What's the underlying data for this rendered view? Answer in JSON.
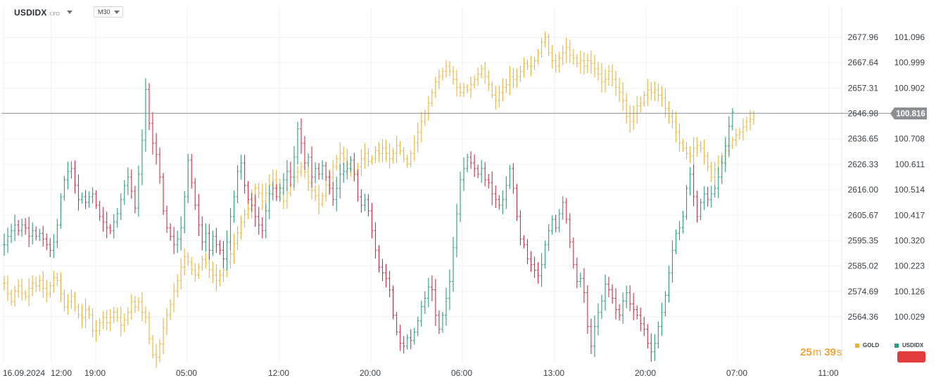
{
  "toolbar": {
    "symbol": "USDIDX",
    "symbol_type": "CFD",
    "timeframe": "M30"
  },
  "countdown": {
    "minutes": "25",
    "minutes_unit": "m",
    "seconds": "39",
    "seconds_unit": "s"
  },
  "price_badge": "100.816",
  "colors": {
    "gold": "#e8b63c",
    "up": "#2f9c7e",
    "down": "#c8334a",
    "badge": "#e23d3a",
    "current_line": "#8b8f94",
    "grid": "#f1f2f4"
  },
  "chart_data": {
    "type": "line",
    "bar_style": "ohlc",
    "timeframe": "M30",
    "x_tick_labels": [
      "16.09.2024",
      "12:00",
      "19:00",
      "05:00",
      "12:00",
      "20:00",
      "06:00",
      "13:00",
      "20:00",
      "07:00",
      "11:00"
    ],
    "left_axis_labels": [
      "2677.96",
      "2667.64",
      "2657.31",
      "2646.98",
      "2636.65",
      "2626.33",
      "2616.00",
      "2605.67",
      "2595.35",
      "2585.02",
      "2574.69",
      "2564.36"
    ],
    "right_axis_labels": [
      "101.096",
      "100.999",
      "100.902",
      "100.816",
      "100.708",
      "100.611",
      "100.514",
      "100.417",
      "100.320",
      "100.223",
      "100.126",
      "100.029"
    ],
    "left_ylim": [
      2554.0,
      2688.3
    ],
    "right_ylim": [
      99.932,
      101.193
    ],
    "grid": true,
    "legend_position": "bottom-right",
    "series": [
      {
        "name": "GOLD",
        "axis": "left",
        "color": "#e8b63c",
        "values": [
          2584,
          2580,
          2577,
          2581,
          2583,
          2580,
          2579,
          2582,
          2584,
          2583,
          2585,
          2582,
          2580,
          2583,
          2586,
          2585,
          2580,
          2575,
          2577,
          2579,
          2575,
          2572,
          2571,
          2574,
          2572,
          2566,
          2566,
          2569,
          2571,
          2569,
          2571,
          2573,
          2571,
          2568,
          2570,
          2573,
          2577,
          2575,
          2577,
          2573,
          2571,
          2563,
          2557,
          2556,
          2561,
          2567,
          2572,
          2576,
          2581,
          2585,
          2590,
          2594,
          2592,
          2589,
          2587,
          2590,
          2593,
          2592,
          2589,
          2587,
          2585,
          2587,
          2589,
          2592,
          2595,
          2599,
          2603,
          2607,
          2610,
          2612,
          2616,
          2620,
          2618,
          2615,
          2618,
          2621,
          2623,
          2620,
          2618,
          2615,
          2618,
          2621,
          2624,
          2626,
          2628,
          2626,
          2622,
          2619,
          2617,
          2614,
          2617,
          2621,
          2624,
          2628,
          2631,
          2633,
          2631,
          2629,
          2627,
          2626,
          2628,
          2631,
          2633,
          2630,
          2631,
          2634,
          2633,
          2635,
          2633,
          2631,
          2633,
          2636,
          2634,
          2631,
          2629,
          2633,
          2637,
          2641,
          2645,
          2648,
          2652,
          2656,
          2660,
          2662,
          2664,
          2666,
          2664,
          2661,
          2658,
          2656,
          2658,
          2657,
          2659,
          2661,
          2663,
          2665,
          2662,
          2659,
          2655,
          2653,
          2656,
          2658,
          2659,
          2662,
          2661,
          2662,
          2664,
          2667,
          2666,
          2666,
          2668,
          2671,
          2675,
          2677,
          2671,
          2668,
          2666,
          2669,
          2671,
          2673,
          2670,
          2669,
          2667,
          2668,
          2666,
          2668,
          2667,
          2665,
          2663,
          2660,
          2661,
          2664,
          2661,
          2658,
          2656,
          2653,
          2647,
          2645,
          2648,
          2651,
          2652,
          2655,
          2657,
          2656,
          2657,
          2655,
          2654,
          2650,
          2647,
          2645,
          2641,
          2637,
          2635,
          2633,
          2632,
          2635,
          2636,
          2635,
          2632,
          2628,
          2624,
          2627,
          2630,
          2632,
          2634,
          2636,
          2638,
          2640,
          2641,
          2643,
          2645,
          2646,
          2647
        ]
      },
      {
        "name": "USDIDX",
        "axis": "right",
        "color": "#2f9c7e",
        "down_color": "#c8334a",
        "values": [
          100.35,
          100.38,
          100.4,
          100.42,
          100.4,
          100.42,
          100.41,
          100.38,
          100.4,
          100.38,
          100.39,
          100.37,
          100.35,
          100.33,
          100.36,
          100.42,
          100.52,
          100.58,
          100.61,
          100.62,
          100.56,
          100.51,
          100.52,
          100.5,
          100.52,
          100.53,
          100.49,
          100.45,
          100.43,
          100.41,
          100.4,
          100.43,
          100.46,
          100.51,
          100.56,
          100.59,
          100.54,
          100.48,
          100.6,
          100.72,
          100.9,
          100.78,
          100.71,
          100.67,
          100.59,
          100.47,
          100.41,
          100.38,
          100.35,
          100.37,
          100.41,
          100.52,
          100.65,
          100.57,
          100.49,
          100.42,
          100.36,
          100.39,
          100.33,
          100.38,
          100.35,
          100.33,
          100.3,
          100.36,
          100.45,
          100.52,
          100.61,
          100.64,
          100.56,
          100.51,
          100.49,
          100.45,
          100.42,
          100.4,
          100.47,
          100.53,
          100.55,
          100.52,
          100.55,
          100.58,
          100.61,
          100.59,
          100.66,
          100.76,
          100.71,
          100.64,
          100.66,
          100.59,
          100.62,
          100.6,
          100.63,
          100.59,
          100.55,
          100.51,
          100.55,
          100.6,
          100.61,
          100.62,
          100.65,
          100.6,
          100.52,
          100.49,
          100.51,
          100.47,
          100.4,
          100.33,
          100.27,
          100.25,
          100.23,
          100.19,
          100.1,
          100.04,
          100.0,
          99.99,
          100.02,
          100.01,
          100.04,
          100.08,
          100.13,
          100.16,
          100.2,
          100.19,
          100.1,
          100.05,
          100.1,
          100.16,
          100.22,
          100.34,
          100.46,
          100.58,
          100.62,
          100.66,
          100.64,
          100.62,
          100.6,
          100.62,
          100.58,
          100.57,
          100.53,
          100.51,
          100.49,
          100.51,
          100.56,
          100.62,
          100.55,
          100.45,
          100.37,
          100.35,
          100.3,
          100.28,
          100.26,
          100.24,
          100.28,
          100.35,
          100.4,
          100.44,
          100.41,
          100.46,
          100.5,
          100.44,
          100.36,
          100.28,
          100.22,
          100.23,
          100.18,
          100.06,
          99.99,
          100.06,
          100.11,
          100.15,
          100.21,
          100.19,
          100.16,
          100.12,
          100.1,
          100.15,
          100.18,
          100.14,
          100.12,
          100.1,
          100.07,
          100.05,
          100.0,
          99.97,
          100.0,
          100.06,
          100.11,
          100.17,
          100.25,
          100.33,
          100.39,
          100.41,
          100.45,
          100.55,
          100.6,
          100.52,
          100.45,
          100.5,
          100.53,
          100.51,
          100.53,
          100.55,
          100.59,
          100.64,
          100.7,
          100.77,
          100.82
        ]
      }
    ],
    "current_price": 100.816
  }
}
